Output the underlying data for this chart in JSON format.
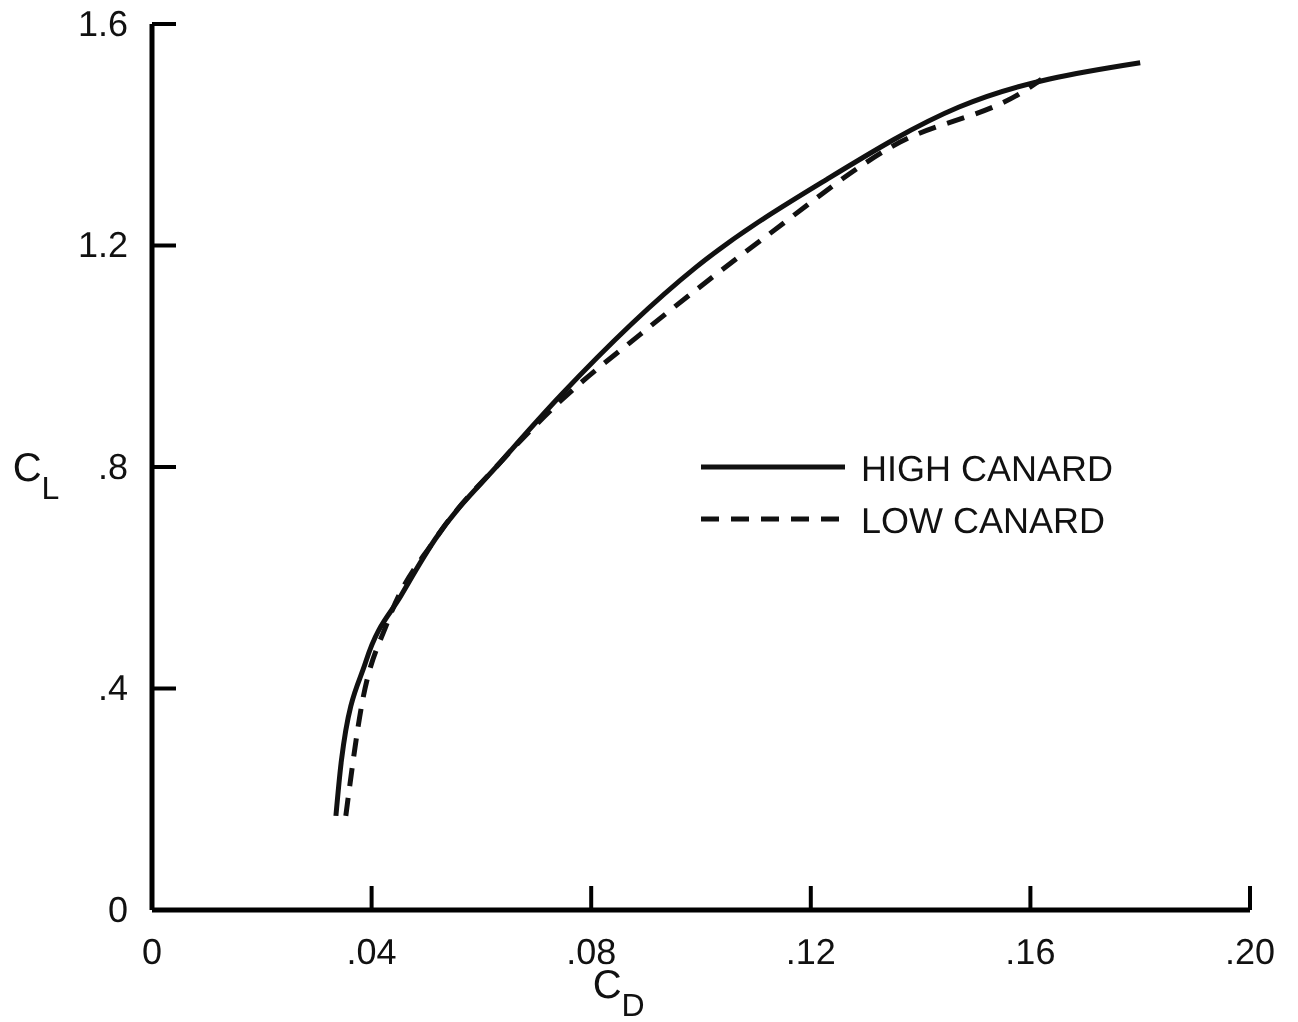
{
  "chart_data": {
    "type": "line",
    "xlabel": "C$_{D}$",
    "ylabel": "C$_{L}$",
    "xlim": [
      0,
      0.2
    ],
    "ylim": [
      0,
      1.6
    ],
    "xticks": [
      {
        "value": 0,
        "label": "0"
      },
      {
        "value": 0.04,
        "label": ".04"
      },
      {
        "value": 0.08,
        "label": ".08"
      },
      {
        "value": 0.12,
        "label": ".12"
      },
      {
        "value": 0.16,
        "label": ".16"
      },
      {
        "value": 0.2,
        "label": ".20"
      }
    ],
    "yticks": [
      {
        "value": 0,
        "label": "0"
      },
      {
        "value": 0.4,
        "label": ".4"
      },
      {
        "value": 0.8,
        "label": ".8"
      },
      {
        "value": 1.2,
        "label": "1.2"
      },
      {
        "value": 1.6,
        "label": "1.6"
      }
    ],
    "grid": false,
    "legend": "right",
    "marker": "none",
    "series": [
      {
        "name": "HIGH CANARD",
        "color": "#111111",
        "line_style": "solid",
        "x": [
          0.0335,
          0.0345,
          0.039,
          0.0455,
          0.0516,
          0.0636,
          0.0745,
          0.099,
          0.123,
          0.147,
          0.18
        ],
        "values": [
          0.17,
          0.27,
          0.45,
          0.57,
          0.67,
          0.81,
          0.93,
          1.16,
          1.32,
          1.45,
          1.53
        ]
      },
      {
        "name": "LOW CANARD",
        "color": "#111111",
        "line_style": "dashed",
        "x": [
          0.0353,
          0.0382,
          0.0429,
          0.0516,
          0.0636,
          0.0745,
          0.089,
          0.111,
          0.135,
          0.159,
          0.162
        ],
        "values": [
          0.17,
          0.37,
          0.52,
          0.67,
          0.81,
          0.92,
          1.04,
          1.21,
          1.38,
          1.48,
          1.5
        ]
      }
    ]
  }
}
